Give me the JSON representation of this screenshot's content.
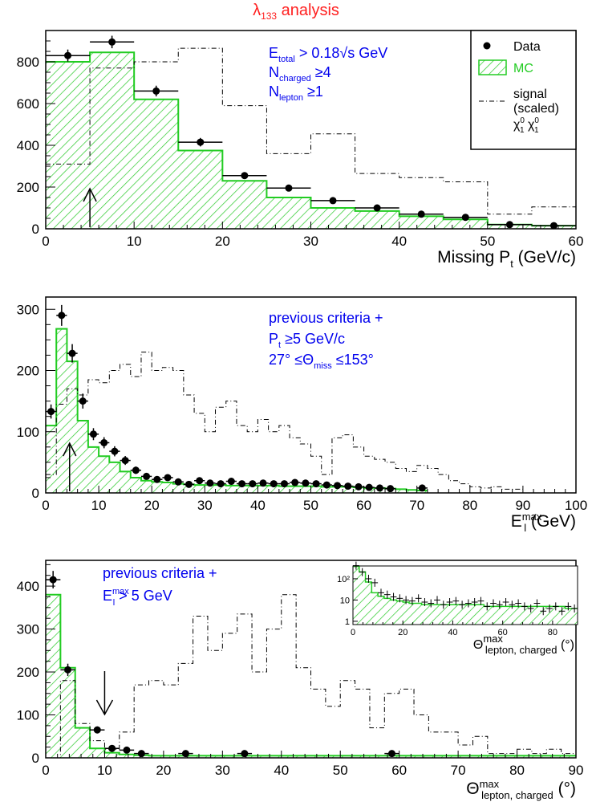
{
  "title_prefix": "λ",
  "title_sub": "133",
  "title_suffix": " analysis",
  "colors": {
    "mc_fill": "#33cc33",
    "mc_line": "#22cc22",
    "text_blue": "#0000ee",
    "title_red": "#ff2020"
  },
  "legend": {
    "data": "Data",
    "mc": "MC",
    "signal_l1": "signal",
    "signal_l2": "(scaled)",
    "chi": "χ",
    "chi_sup": "0",
    "chi_sub": "1"
  },
  "chart_data": [
    {
      "type": "bar",
      "xlabel": "Missing P",
      "xlabel_sub": "t",
      "xlabel_unit": "(GeV/c)",
      "xlim": [
        0,
        60
      ],
      "ylim": [
        0,
        950
      ],
      "xticks": [
        0,
        10,
        20,
        30,
        40,
        50,
        60
      ],
      "yticks": [
        0,
        200,
        400,
        600,
        800
      ],
      "annotations": [
        {
          "base": "E",
          "sub": "total",
          "rest": " > 0.18√s GeV"
        },
        {
          "base": "N",
          "sub": "charged",
          "rest": " ≥4"
        },
        {
          "base": "N",
          "sub": "lepton",
          "rest": " ≥1"
        }
      ],
      "cut_arrow": {
        "x": 5,
        "direction": "up"
      },
      "mc": {
        "edges": [
          0,
          5,
          10,
          15,
          20,
          25,
          30,
          35,
          40,
          45,
          50,
          55,
          60
        ],
        "values": [
          800,
          845,
          620,
          375,
          230,
          150,
          100,
          85,
          60,
          45,
          20,
          15
        ]
      },
      "signal": {
        "edges": [
          0,
          5,
          10,
          15,
          20,
          25,
          30,
          35,
          40,
          45,
          50,
          55,
          60
        ],
        "values": [
          310,
          770,
          800,
          865,
          590,
          360,
          455,
          265,
          245,
          225,
          70,
          105
        ]
      },
      "data": {
        "x": [
          2.5,
          7.5,
          12.5,
          17.5,
          22.5,
          27.5,
          32.5,
          37.5,
          42.5,
          47.5,
          52.5,
          57.5
        ],
        "y": [
          830,
          895,
          660,
          415,
          255,
          195,
          135,
          100,
          70,
          55,
          20,
          15
        ],
        "xerr": 2.5
      }
    },
    {
      "type": "bar",
      "xlabel": "E",
      "xlabel_sub": "l",
      "xlabel_sup": "max",
      "xlabel_unit": "(GeV)",
      "xlim": [
        0,
        100
      ],
      "ylim": [
        0,
        320
      ],
      "xticks": [
        0,
        10,
        20,
        30,
        40,
        50,
        60,
        70,
        80,
        90,
        100
      ],
      "yticks": [
        0,
        100,
        200,
        300
      ],
      "annotations": [
        {
          "base": "previous criteria +",
          "sub": "",
          "rest": ""
        },
        {
          "base": "P",
          "sub": "t",
          "rest": " ≥5 GeV/c"
        },
        {
          "base": "27° ≤Θ",
          "sub": "miss",
          "rest": " ≤153°"
        }
      ],
      "cut_arrow": {
        "x": 4.5,
        "direction": "up"
      },
      "mc": {
        "edges": [
          0,
          2,
          4,
          6,
          8,
          10,
          12,
          14,
          16,
          18,
          20,
          22,
          24,
          26,
          28,
          30,
          32,
          34,
          36,
          38,
          40,
          42,
          44,
          46,
          48,
          50,
          52,
          54,
          56,
          58,
          60,
          62,
          64,
          66,
          68,
          70,
          72
        ],
        "values": [
          110,
          268,
          215,
          118,
          75,
          60,
          50,
          35,
          25,
          20,
          18,
          17,
          15,
          14,
          13,
          13,
          13,
          12,
          12,
          12,
          12,
          12,
          11,
          11,
          11,
          11,
          10,
          10,
          10,
          9,
          8,
          8,
          7,
          6,
          5,
          4
        ]
      },
      "signal": {
        "edges": [
          0,
          2,
          4,
          6,
          8,
          10,
          12,
          14,
          16,
          18,
          20,
          22,
          24,
          26,
          28,
          30,
          32,
          34,
          36,
          38,
          40,
          42,
          44,
          46,
          48,
          50,
          52,
          54,
          56,
          58,
          60,
          62,
          64,
          66,
          68,
          70,
          72,
          74,
          76,
          78,
          80,
          82,
          84,
          86,
          88,
          90
        ],
        "values": [
          30,
          145,
          170,
          160,
          185,
          180,
          200,
          210,
          190,
          230,
          200,
          205,
          200,
          160,
          130,
          100,
          140,
          150,
          110,
          100,
          120,
          100,
          110,
          90,
          80,
          60,
          30,
          90,
          95,
          75,
          60,
          55,
          50,
          40,
          35,
          45,
          40,
          30,
          20,
          15,
          10,
          8,
          10,
          6,
          6
        ]
      },
      "data": {
        "x": [
          1,
          3,
          5,
          7,
          9,
          11,
          13,
          15,
          17,
          19,
          21,
          23,
          25,
          27,
          29,
          31,
          33,
          35,
          37,
          39,
          41,
          43,
          45,
          47,
          49,
          51,
          53,
          55,
          57,
          59,
          61,
          63,
          65,
          71
        ],
        "y": [
          133,
          290,
          228,
          150,
          96,
          82,
          68,
          53,
          37,
          27,
          22,
          25,
          18,
          14,
          20,
          16,
          15,
          19,
          15,
          15,
          16,
          15,
          15,
          17,
          16,
          15,
          13,
          12,
          11,
          10,
          9,
          8,
          7,
          8
        ],
        "xerr": 1
      }
    },
    {
      "type": "bar",
      "xlabel": "Θ",
      "xlabel_sub": "lepton, charged",
      "xlabel_sup": "max",
      "xlabel_unit": "(°)",
      "xlim": [
        0,
        90
      ],
      "ylim": [
        0,
        460
      ],
      "xticks": [
        0,
        10,
        20,
        30,
        40,
        50,
        60,
        70,
        80,
        90
      ],
      "yticks": [
        0,
        100,
        200,
        300,
        400
      ],
      "annotations": [
        {
          "base": "previous criteria +",
          "sub": "",
          "rest": ""
        },
        {
          "base": "E",
          "sub": "l",
          "sup": "max",
          "rest": " > 5 GeV"
        }
      ],
      "cut_arrow": {
        "x": 10,
        "direction": "down"
      },
      "mc": {
        "edges": [
          0,
          2.5,
          5,
          7.5,
          10,
          12.5,
          15,
          17.5,
          20,
          22.5,
          25,
          27.5,
          30,
          32.5,
          35,
          37.5,
          40,
          42.5,
          45,
          47.5,
          50,
          52.5,
          55,
          57.5,
          60,
          62.5,
          65,
          67.5,
          70,
          72.5,
          75,
          77.5,
          80,
          82.5,
          85,
          87.5,
          90
        ],
        "values": [
          380,
          210,
          70,
          22,
          12,
          8,
          6,
          5,
          5,
          5,
          5,
          5,
          5,
          5,
          5,
          5,
          5,
          5,
          5,
          5,
          5,
          5,
          5,
          5,
          5,
          5,
          5,
          5,
          5,
          5,
          5,
          5,
          5,
          5,
          5,
          5
        ]
      },
      "signal": {
        "edges": [
          0,
          2.5,
          5,
          7.5,
          10,
          12.5,
          15,
          17.5,
          20,
          22.5,
          25,
          27.5,
          30,
          32.5,
          35,
          37.5,
          40,
          42.5,
          45,
          47.5,
          50,
          52.5,
          55,
          57.5,
          60,
          62.5,
          65,
          67.5,
          70,
          72.5,
          75,
          77.5,
          80,
          82.5,
          85,
          87.5,
          90
        ],
        "values": [
          0,
          180,
          80,
          40,
          20,
          60,
          170,
          180,
          170,
          220,
          330,
          250,
          290,
          335,
          200,
          300,
          380,
          210,
          160,
          120,
          180,
          160,
          70,
          150,
          160,
          100,
          60,
          60,
          30,
          50,
          10,
          10,
          20,
          10,
          20,
          10
        ]
      },
      "data": {
        "x": [
          1.25,
          3.75,
          8.75,
          11.25,
          13.75,
          16.25,
          23.75,
          33.75,
          58.75
        ],
        "y": [
          415,
          205,
          65,
          22,
          18,
          10,
          10,
          10,
          10
        ],
        "xerr": 1.25
      },
      "inset": {
        "type": "bar",
        "log_y": true,
        "xlim": [
          0,
          90
        ],
        "ylim": [
          0.7,
          400
        ],
        "xticks": [
          0,
          20,
          40,
          60,
          80
        ],
        "yticks": [
          "1",
          "10",
          "10²"
        ],
        "xlabel": "Θ",
        "xlabel_sub": "lepton, charged",
        "xlabel_sup": "max",
        "xlabel_unit": "(°)",
        "mc": {
          "edges": [
            0,
            2.5,
            5,
            7.5,
            10,
            12.5,
            15,
            17.5,
            20,
            22.5,
            25,
            27.5,
            30,
            32.5,
            35,
            37.5,
            40,
            42.5,
            45,
            47.5,
            50,
            52.5,
            55,
            57.5,
            60,
            62.5,
            65,
            67.5,
            70,
            72.5,
            75,
            77.5,
            80,
            82.5,
            85,
            87.5,
            90
          ],
          "values": [
            380,
            210,
            70,
            22,
            15,
            12,
            10,
            9,
            8,
            7,
            7,
            6,
            6,
            6,
            6,
            6,
            6,
            6,
            6,
            6,
            6,
            5,
            5,
            5,
            5,
            5,
            5,
            5,
            5,
            5,
            5,
            5,
            5,
            5,
            4,
            4
          ]
        },
        "data": {
          "x": [
            1.25,
            3.75,
            6.25,
            8.75,
            11.25,
            13.75,
            16.25,
            18.75,
            21.25,
            23.75,
            26.25,
            28.75,
            31.25,
            33.75,
            36.25,
            38.75,
            41.25,
            43.75,
            46.25,
            48.75,
            51.25,
            53.75,
            56.25,
            58.75,
            61.25,
            63.75,
            66.25,
            68.75,
            71.25,
            73.75,
            76.25,
            78.75,
            81.25,
            83.75,
            86.25,
            88.75
          ],
          "y": [
            415,
            205,
            100,
            65,
            22,
            18,
            14,
            12,
            10,
            9,
            12,
            8,
            7,
            10,
            6,
            8,
            9,
            6,
            7,
            8,
            9,
            5,
            7,
            6,
            8,
            6,
            7,
            5,
            4,
            7,
            3,
            4,
            5,
            3,
            5,
            4
          ],
          "xerr": 1.25
        }
      }
    }
  ]
}
